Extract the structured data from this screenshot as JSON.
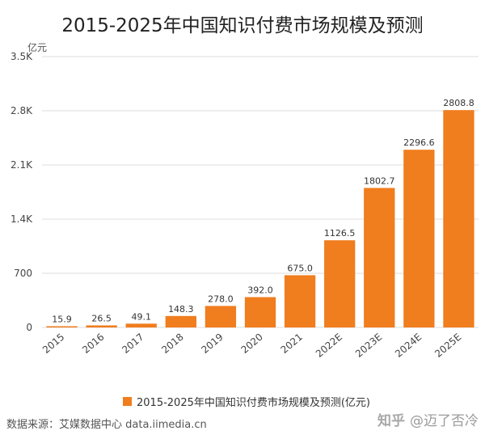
{
  "title": "2015-2025年中国知识付费市场规模及预测",
  "unit_label": "亿元",
  "legend_label": "2015-2025年中国知识付费市场规模及预测(亿元)",
  "source": "数据来源：艾媒数据中心 data.iimedia.cn",
  "watermark": {
    "logo": "知乎",
    "handle": "@迈了否冷"
  },
  "colors": {
    "bar": "#f07d1e",
    "grid": "#dcdcdc",
    "axis_text": "#444444"
  },
  "chart_data": {
    "type": "bar",
    "title": "2015-2025年中国知识付费市场规模及预测",
    "ylabel": "亿元",
    "ylim": [
      0,
      3500
    ],
    "yticks": [
      {
        "value": 0,
        "label": "0"
      },
      {
        "value": 700,
        "label": "700"
      },
      {
        "value": 1400,
        "label": "1.4K"
      },
      {
        "value": 2100,
        "label": "2.1K"
      },
      {
        "value": 2800,
        "label": "2.8K"
      },
      {
        "value": 3500,
        "label": "3.5K"
      }
    ],
    "categories": [
      "2015",
      "2016",
      "2017",
      "2018",
      "2019",
      "2020",
      "2021",
      "2022E",
      "2023E",
      "2024E",
      "2025E"
    ],
    "series": [
      {
        "name": "2015-2025年中国知识付费市场规模及预测(亿元)",
        "values": [
          15.9,
          26.5,
          49.1,
          148.3,
          278.0,
          392.0,
          675.0,
          1126.5,
          1802.7,
          2296.6,
          2808.8
        ],
        "labels": [
          "15.9",
          "26.5",
          "49.1",
          "148.3",
          "278.0",
          "392.0",
          "675.0",
          "1126.5",
          "1802.7",
          "2296.6",
          "2808.8"
        ]
      }
    ],
    "grid": true,
    "legend_position": "bottom-center"
  }
}
